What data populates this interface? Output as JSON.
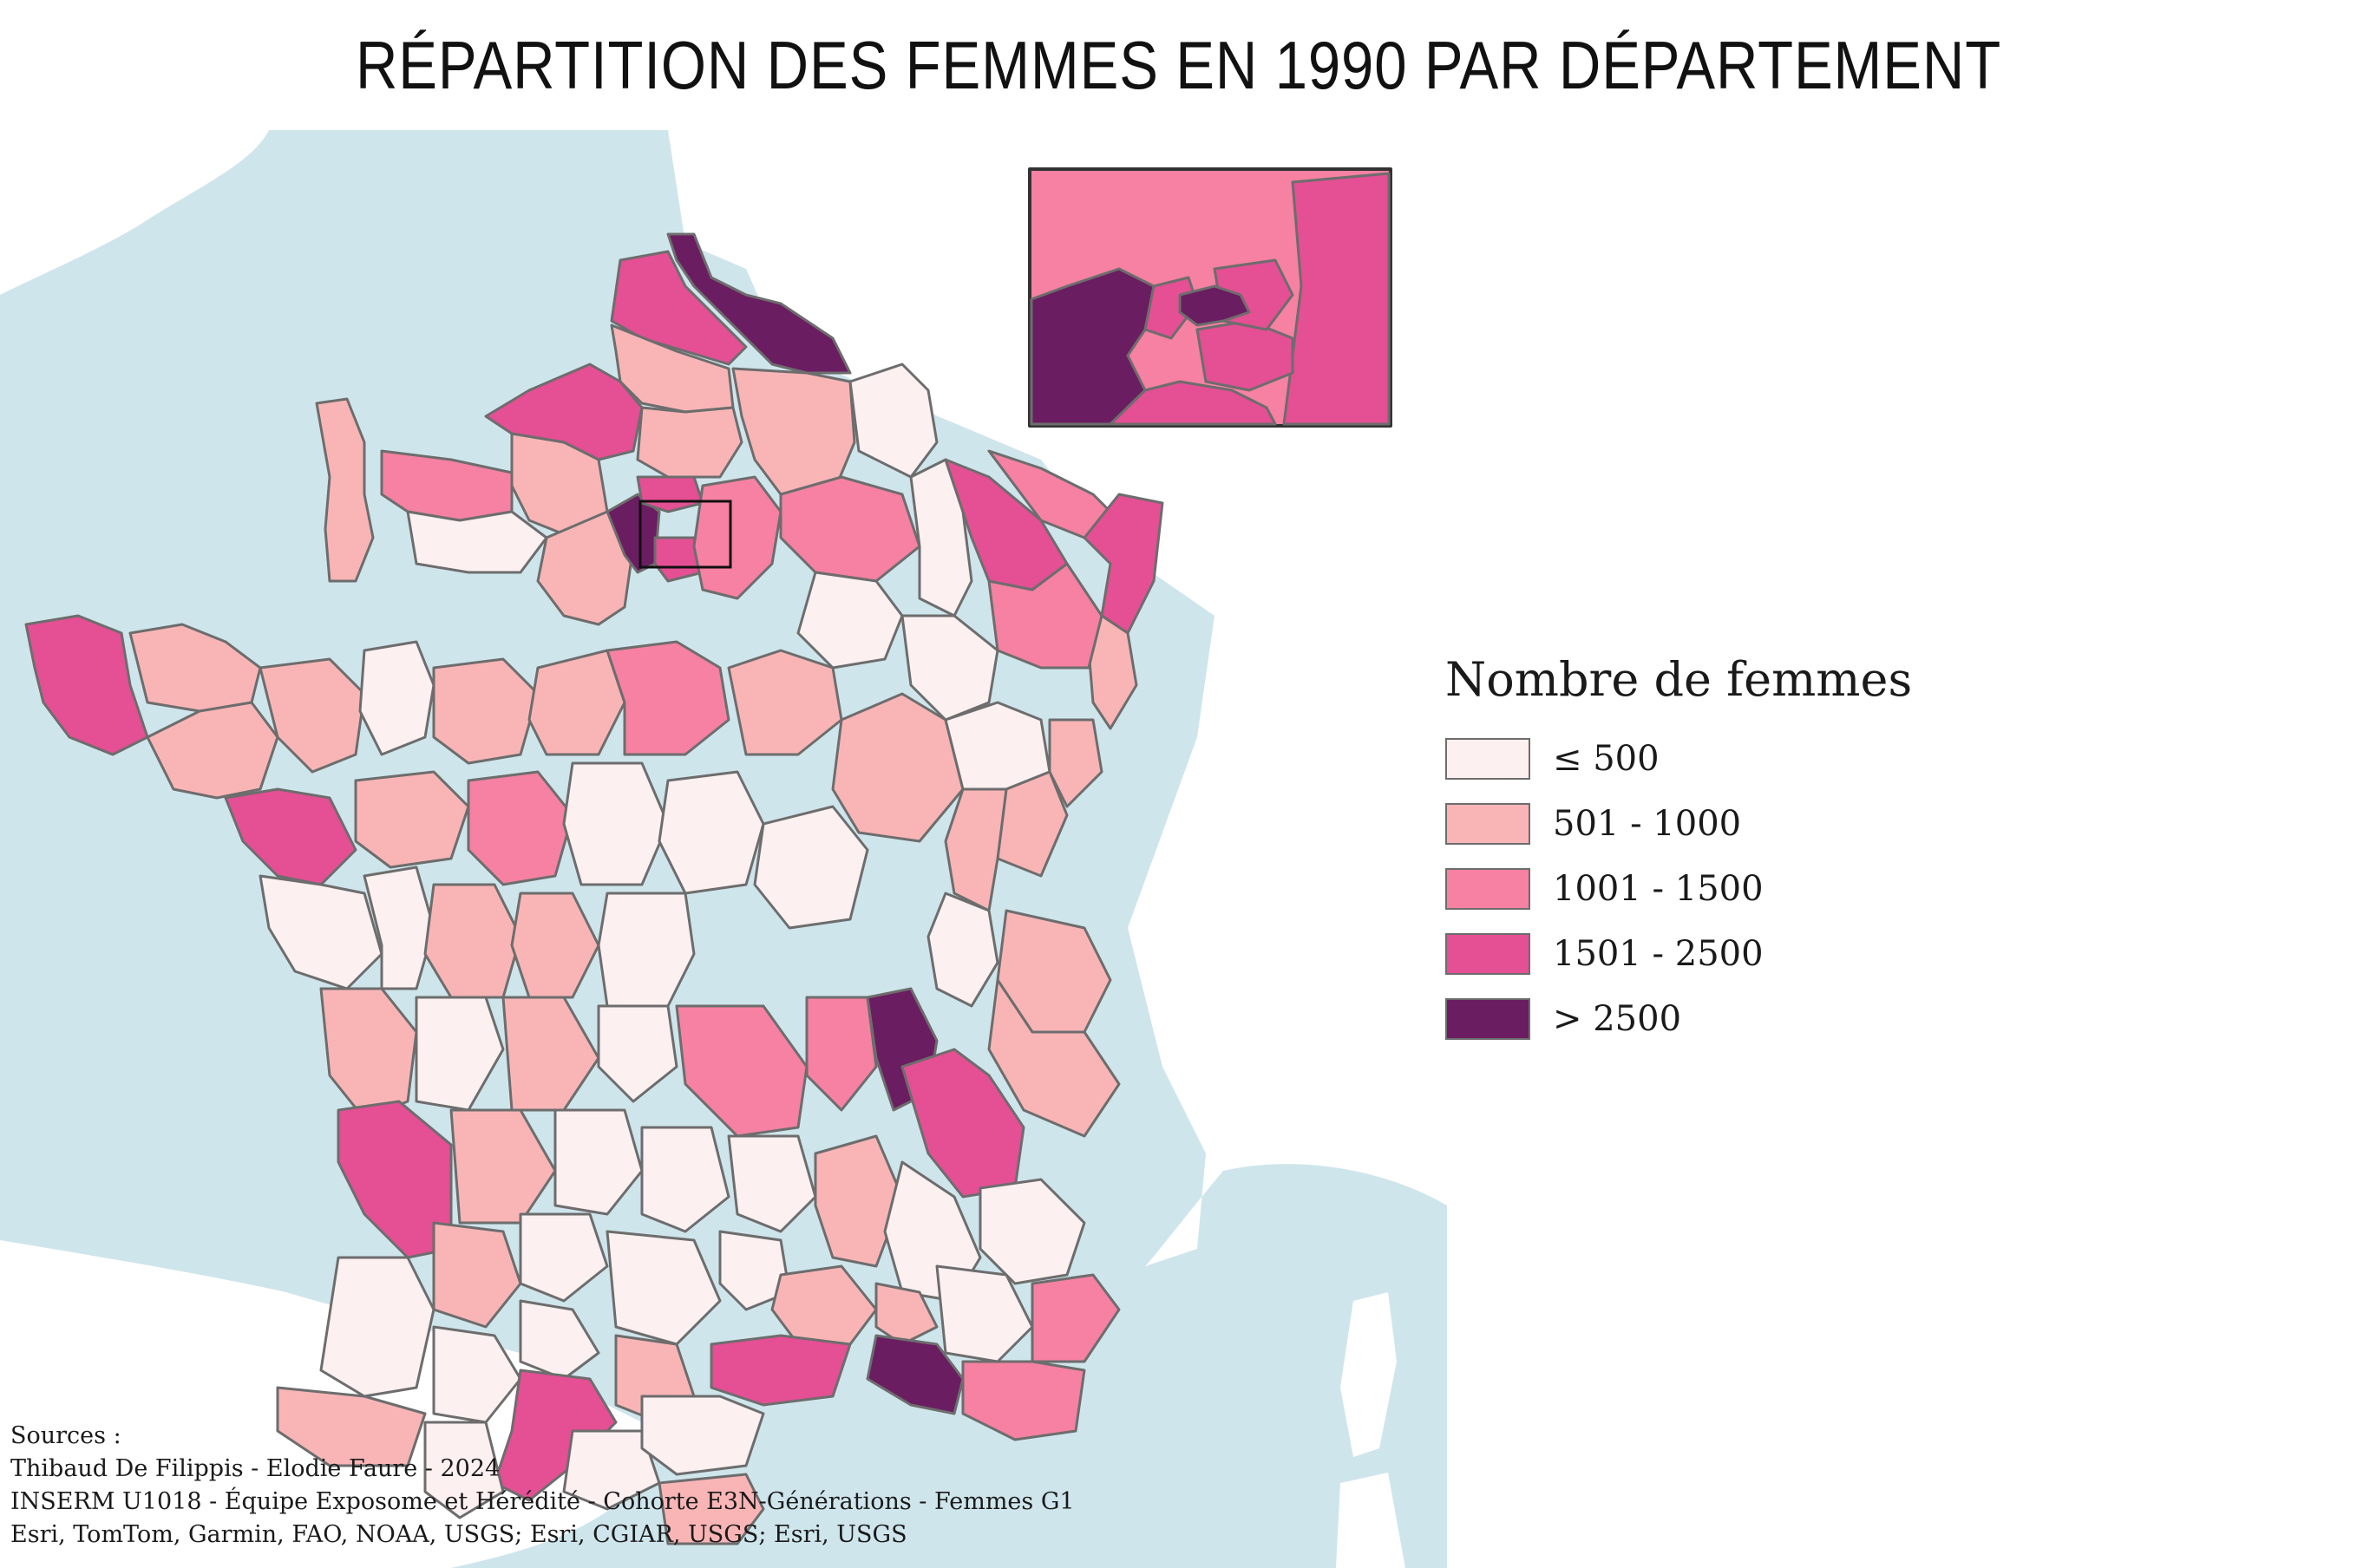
{
  "title": "RÉPARTITION DES FEMMES EN 1990 PAR DÉPARTEMENT",
  "legend": {
    "title": "Nombre de femmes",
    "classes": [
      {
        "label": "≤ 500",
        "color": "#fdf0f1"
      },
      {
        "label": "501 - 1000",
        "color": "#f9b5b6"
      },
      {
        "label": "1001 - 1500",
        "color": "#f681a2"
      },
      {
        "label": "1501 - 2500",
        "color": "#e54f94"
      },
      {
        "label": "> 2500",
        "color": "#6b1d61"
      }
    ]
  },
  "sources": {
    "heading": "Sources :",
    "lines": [
      "Thibaud De Filippis - Elodie Faure - 2024",
      "INSERM U1018 - Équipe Exposome et Hérédité - Cohorte E3N-Générations - Femmes G1",
      "Esri, TomTom, Garmin, FAO, NOAA, USGS; Esri, CGIAR, USGS; Esri, USGS"
    ]
  },
  "map": {
    "sea_color": "#cfe5ec",
    "land_color": "#ffffff",
    "border_color": "#6d6d6d",
    "inset": "Paris et petite couronne (agrandissement)"
  }
}
